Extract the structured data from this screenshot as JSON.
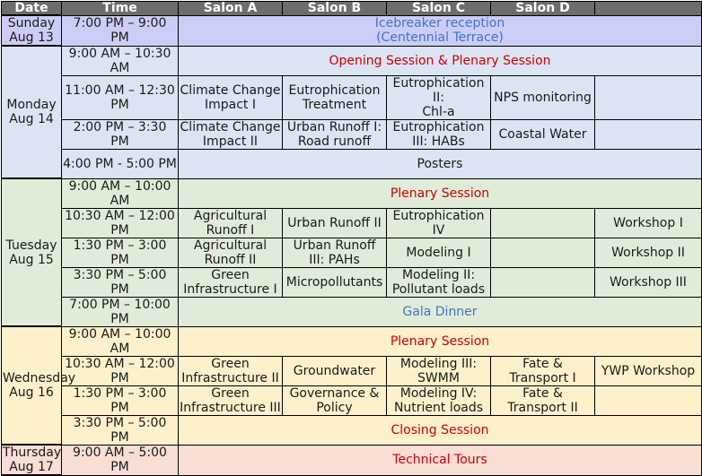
{
  "colors": {
    "header_bg": "#6d6d6d",
    "sunday_bg": "#cccdf6",
    "monday_bg": "#dbe4f3",
    "tuesday_bg": "#e0ecd7",
    "wednesday_bg": "#fdf1cc",
    "thursday_bg": "#f9ded4",
    "plenary_text": "#cc0000",
    "social_text": "#3f75c9"
  },
  "headers": {
    "date": "Date",
    "time": "Time",
    "salon_a": "Salon A",
    "salon_b": "Salon B",
    "salon_c": "Salon C",
    "salon_d": "Salon D",
    "extra": ""
  },
  "days": {
    "sunday": "Sunday\nAug 13",
    "monday": "Monday\nAug 14",
    "tuesday": "Tuesday\nAug 15",
    "wednesday": "Wednesday\nAug 16",
    "thursday": "Thursday\nAug 17"
  },
  "rows": [
    {
      "time": "7:00 PM –  9:00 PM",
      "span": "Icebreaker reception\n(Centennial Terrace)"
    },
    {
      "time": "9:00 AM – 10:30 AM",
      "span": "Opening Session & Plenary Session"
    },
    {
      "time": "11:00 AM – 12:30 PM",
      "a": "Climate Change Impact I",
      "b": "Eutrophication Treatment",
      "c": "Eutrophication II:\nChl-a",
      "d": "NPS monitoring",
      "e": ""
    },
    {
      "time": "2:00 PM – 3:30 PM",
      "a": "Climate Change Impact II",
      "b": "Urban Runoff I: Road runoff",
      "c": "Eutrophication III: HABs",
      "d": "Coastal Water",
      "e": ""
    },
    {
      "time": "4:00 PM -  5:00 PM",
      "span": "Posters"
    },
    {
      "time": "9:00 AM – 10:00 AM",
      "span": "Plenary Session"
    },
    {
      "time": "10:30 AM – 12:00 PM",
      "a": "Agricultural Runoff I",
      "b": "Urban Runoff II",
      "c": "Eutrophication IV",
      "d": "",
      "e": "Workshop I"
    },
    {
      "time": "1:30 PM – 3:00 PM",
      "a": "Agricultural Runoff II",
      "b": "Urban Runoff III: PAHs",
      "c": "Modeling I",
      "d": "",
      "e": "Workshop II"
    },
    {
      "time": "3:30 PM – 5:00 PM",
      "a": "Green Infrastructure  I",
      "b": "Micropollutants",
      "c": "Modeling II: Pollutant loads",
      "d": "",
      "e": "Workshop III"
    },
    {
      "time": "7:00 PM – 10:00 PM",
      "span": "Gala Dinner"
    },
    {
      "time": "9:00 AM – 10:00 AM",
      "span": "Plenary Session"
    },
    {
      "time": "10:30 AM – 12:00 PM",
      "a": "Green Infrastructure II",
      "b": "Groundwater",
      "c": "Modeling III: SWMM",
      "d": "Fate & Transport I",
      "e": "YWP Workshop"
    },
    {
      "time": "1:30 PM – 3:00 PM",
      "a": "Green Infrastructure III",
      "b": "Governance & Policy",
      "c": "Modeling IV: Nutrient loads",
      "d": "Fate & Transport II",
      "e": ""
    },
    {
      "time": "3:30 PM – 5:00 PM",
      "span": "Closing Session"
    },
    {
      "time": "9:00 AM – 5:00 PM",
      "span": "Technical Tours"
    }
  ]
}
